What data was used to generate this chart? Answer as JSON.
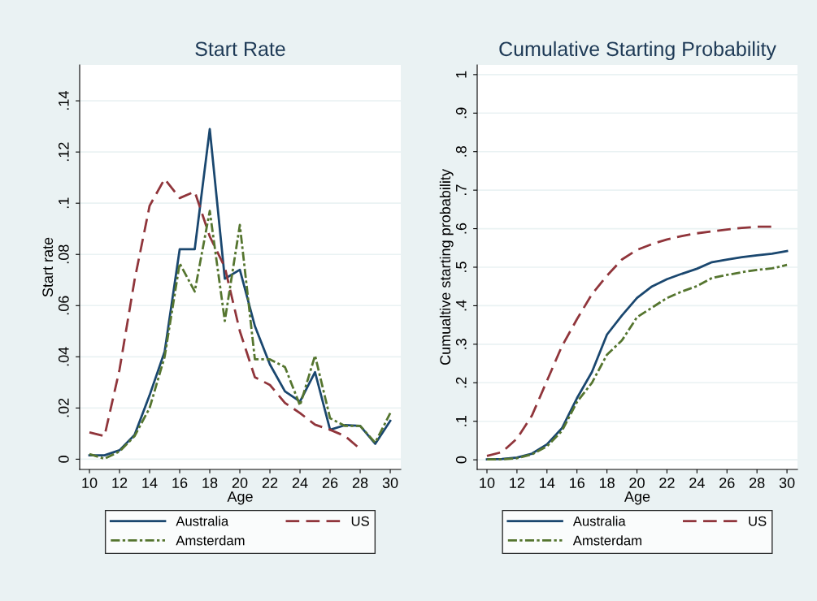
{
  "chart_data": [
    {
      "type": "line",
      "title": "Start Rate",
      "xlabel": "Age",
      "ylabel": "Start rate",
      "xlim": [
        9.35,
        30.7
      ],
      "xticks": [
        10,
        12,
        14,
        16,
        18,
        20,
        22,
        24,
        26,
        28,
        30
      ],
      "ylim": [
        -0.004,
        0.154
      ],
      "yticks": [
        {
          "value": 0,
          "label": "0"
        },
        {
          "value": 0.02,
          "label": ".02"
        },
        {
          "value": 0.04,
          "label": ".04"
        },
        {
          "value": 0.06,
          "label": ".06"
        },
        {
          "value": 0.08,
          "label": ".08"
        },
        {
          "value": 0.1,
          "label": ".1"
        },
        {
          "value": 0.12,
          "label": ".12"
        },
        {
          "value": 0.14,
          "label": ".14"
        }
      ],
      "grid": "y",
      "legend": "bottom",
      "series": [
        {
          "name": "Australia",
          "color": "#1a476f",
          "line_style": "solid",
          "x": [
            10,
            11,
            12,
            13,
            14,
            15,
            16,
            17,
            18,
            19,
            20,
            21,
            22,
            23,
            24,
            25,
            26,
            27,
            28,
            29,
            30
          ],
          "values": [
            0.0015,
            0.0015,
            0.0035,
            0.0095,
            0.025,
            0.042,
            0.082,
            0.082,
            0.129,
            0.0705,
            0.074,
            0.052,
            0.037,
            0.0265,
            0.0225,
            0.034,
            0.0115,
            0.0133,
            0.013,
            0.006,
            0.015
          ]
        },
        {
          "name": "US",
          "color": "#90353b",
          "line_style": "dashed",
          "x": [
            10,
            11,
            12,
            13,
            14,
            15,
            16,
            17,
            18,
            19,
            20,
            21,
            22,
            23,
            24,
            25,
            26,
            27,
            28
          ],
          "values": [
            0.0105,
            0.009,
            0.035,
            0.07,
            0.099,
            0.1095,
            0.102,
            0.1045,
            0.087,
            0.075,
            0.05,
            0.032,
            0.029,
            0.022,
            0.018,
            0.0135,
            0.0115,
            0.009,
            0.004
          ]
        },
        {
          "name": "Amsterdam",
          "color": "#55752f",
          "line_style": "dashdot",
          "x": [
            10,
            11,
            12,
            13,
            14,
            15,
            16,
            17,
            18,
            19,
            20,
            21,
            22,
            23,
            24,
            25,
            26,
            27,
            28,
            29,
            30
          ],
          "values": [
            0.002,
            0.0002,
            0.003,
            0.009,
            0.02,
            0.04,
            0.0765,
            0.0655,
            0.097,
            0.054,
            0.0915,
            0.039,
            0.039,
            0.036,
            0.021,
            0.0405,
            0.016,
            0.013,
            0.013,
            0.0065,
            0.018
          ]
        }
      ]
    },
    {
      "type": "line",
      "title": "Cumulative Starting Probability",
      "xlabel": "Age",
      "ylabel": "Cumualtive starting probability",
      "xlim": [
        9.35,
        30.7
      ],
      "xticks": [
        10,
        12,
        14,
        16,
        18,
        20,
        22,
        24,
        26,
        28,
        30
      ],
      "ylim": [
        -0.025,
        1.025
      ],
      "yticks": [
        {
          "value": 0,
          "label": "0"
        },
        {
          "value": 0.1,
          "label": ".1"
        },
        {
          "value": 0.2,
          "label": ".2"
        },
        {
          "value": 0.3,
          "label": ".3"
        },
        {
          "value": 0.4,
          "label": ".4"
        },
        {
          "value": 0.5,
          "label": ".5"
        },
        {
          "value": 0.6,
          "label": ".6"
        },
        {
          "value": 0.7,
          "label": ".7"
        },
        {
          "value": 0.8,
          "label": ".8"
        },
        {
          "value": 0.9,
          "label": ".9"
        },
        {
          "value": 1,
          "label": "1"
        }
      ],
      "grid": "y",
      "legend": "bottom",
      "series": [
        {
          "name": "Australia",
          "color": "#1a476f",
          "line_style": "solid",
          "x": [
            10,
            11,
            12,
            13,
            14,
            15,
            16,
            17,
            18,
            19,
            20,
            21,
            22,
            23,
            24,
            25,
            26,
            27,
            28,
            29,
            30
          ],
          "values": [
            0.001,
            0.002,
            0.006,
            0.016,
            0.04,
            0.082,
            0.16,
            0.228,
            0.325,
            0.375,
            0.42,
            0.45,
            0.469,
            0.483,
            0.496,
            0.513,
            0.52,
            0.526,
            0.531,
            0.535,
            0.542
          ]
        },
        {
          "name": "US",
          "color": "#90353b",
          "line_style": "dashed",
          "x": [
            10,
            11,
            12,
            13,
            14,
            15,
            16,
            17,
            18,
            19,
            20,
            21,
            22,
            23,
            24,
            25,
            26,
            27,
            28,
            29
          ],
          "values": [
            0.01,
            0.02,
            0.055,
            0.115,
            0.205,
            0.295,
            0.365,
            0.43,
            0.478,
            0.52,
            0.545,
            0.56,
            0.572,
            0.581,
            0.588,
            0.593,
            0.598,
            0.602,
            0.605,
            0.605
          ]
        },
        {
          "name": "Amsterdam",
          "color": "#55752f",
          "line_style": "dashdot",
          "x": [
            10,
            11,
            12,
            13,
            14,
            15,
            16,
            17,
            18,
            19,
            20,
            21,
            22,
            23,
            24,
            25,
            26,
            27,
            28,
            29,
            30
          ],
          "values": [
            0.001,
            0.001,
            0.004,
            0.014,
            0.035,
            0.075,
            0.15,
            0.2,
            0.273,
            0.31,
            0.37,
            0.395,
            0.42,
            0.437,
            0.451,
            0.472,
            0.48,
            0.487,
            0.493,
            0.497,
            0.506
          ]
        }
      ]
    }
  ]
}
